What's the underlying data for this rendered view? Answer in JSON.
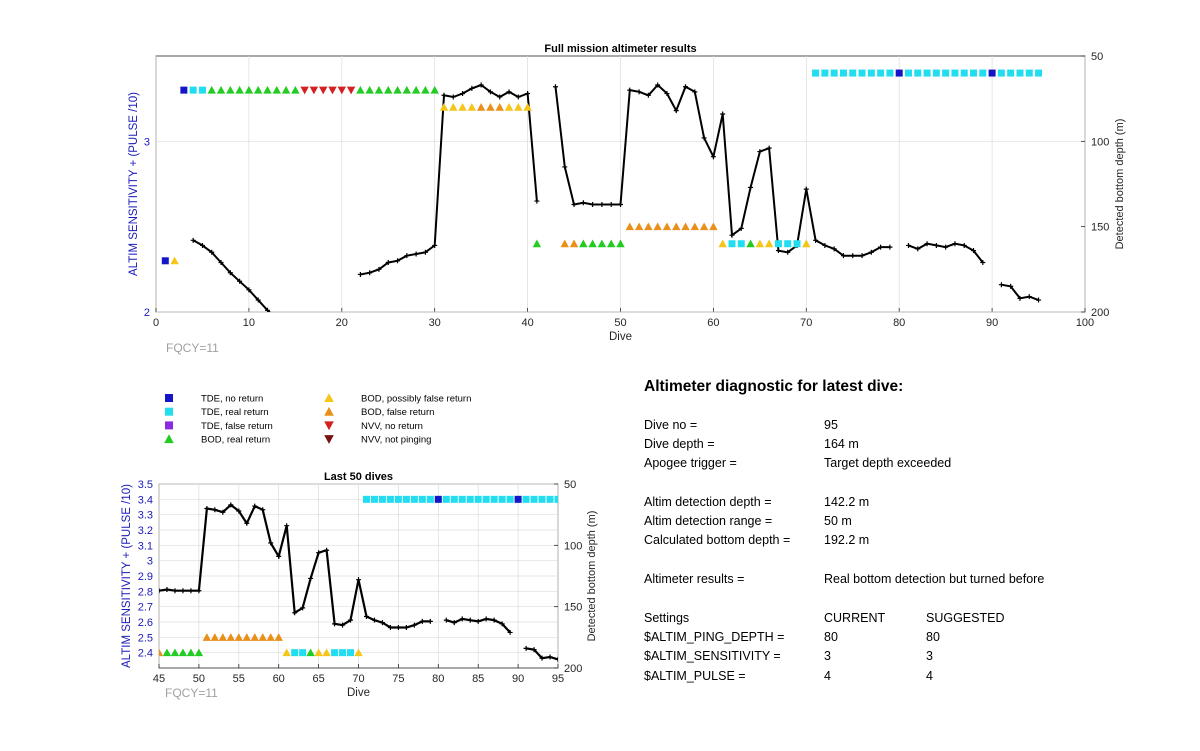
{
  "chart_data": [
    {
      "type": "line",
      "title": "Full mission altimeter results",
      "xlabel": "Dive",
      "ylabel_left": "ALTIM SENSITIVITY + (PULSE /10)",
      "ylabel_right": "Detected bottom depth (m)",
      "xlim": [
        0,
        100
      ],
      "ylim_left": [
        2,
        3.5
      ],
      "ylim_right": [
        200,
        50
      ],
      "right_axis_reversed": true,
      "grid": true,
      "x_ticks": [
        "0",
        "10",
        "20",
        "30",
        "40",
        "50",
        "60",
        "70",
        "80",
        "90",
        "100"
      ],
      "y_left_ticks": [
        "2",
        "3"
      ],
      "y_right_ticks": [
        "50",
        "100",
        "150",
        "200"
      ],
      "annotation": "FQCY=11",
      "depth_series": {
        "color": "#000000",
        "points": [
          [
            2,
            42
          ],
          [
            4,
            158
          ],
          [
            5,
            161
          ],
          [
            6,
            165
          ],
          [
            7,
            171
          ],
          [
            8,
            177
          ],
          [
            9,
            182
          ],
          [
            10,
            187
          ],
          [
            11,
            193
          ],
          [
            12,
            199
          ],
          [
            13,
            204
          ],
          [
            14,
            207
          ],
          [
            15,
            211
          ],
          [
            22,
            178
          ],
          [
            23,
            177
          ],
          [
            24,
            175
          ],
          [
            25,
            171
          ],
          [
            26,
            170
          ],
          [
            27,
            167
          ],
          [
            28,
            166
          ],
          [
            29,
            165
          ],
          [
            30,
            161
          ],
          [
            31,
            73
          ],
          [
            32,
            74
          ],
          [
            33,
            72
          ],
          [
            34,
            69
          ],
          [
            35,
            67
          ],
          [
            36,
            71
          ],
          [
            37,
            74
          ],
          [
            38,
            71
          ],
          [
            39,
            74
          ],
          [
            40,
            72
          ],
          [
            41,
            135
          ],
          [
            43,
            68
          ],
          [
            44,
            115
          ],
          [
            45,
            137
          ],
          [
            46,
            136
          ],
          [
            47,
            137
          ],
          [
            48,
            137
          ],
          [
            49,
            137
          ],
          [
            50,
            137
          ],
          [
            51,
            70
          ],
          [
            52,
            71
          ],
          [
            53,
            73
          ],
          [
            54,
            67
          ],
          [
            55,
            72
          ],
          [
            56,
            82
          ],
          [
            57,
            68
          ],
          [
            58,
            71
          ],
          [
            59,
            98
          ],
          [
            60,
            109
          ],
          [
            61,
            84
          ],
          [
            62,
            155
          ],
          [
            63,
            151
          ],
          [
            64,
            127
          ],
          [
            65,
            106
          ],
          [
            66,
            104
          ],
          [
            67,
            164
          ],
          [
            68,
            165
          ],
          [
            69,
            161
          ],
          [
            70,
            128
          ],
          [
            71,
            158
          ],
          [
            72,
            161
          ],
          [
            73,
            163
          ],
          [
            74,
            167
          ],
          [
            75,
            167
          ],
          [
            76,
            167
          ],
          [
            77,
            165
          ],
          [
            78,
            162
          ],
          [
            79,
            162
          ],
          [
            81,
            161
          ],
          [
            82,
            163
          ],
          [
            83,
            160
          ],
          [
            84,
            161
          ],
          [
            85,
            162
          ],
          [
            86,
            160
          ],
          [
            87,
            161
          ],
          [
            88,
            164
          ],
          [
            89,
            171
          ],
          [
            91,
            184
          ],
          [
            92,
            185
          ],
          [
            93,
            192
          ],
          [
            94,
            191
          ],
          [
            95,
            193
          ]
        ]
      },
      "flags": [
        {
          "x": [
            3
          ],
          "y": 3.3,
          "series": "TDE, no return"
        },
        {
          "x": [
            4,
            5
          ],
          "y": 3.3,
          "series": "TDE, real return"
        },
        {
          "x": [
            6,
            7,
            8,
            9,
            10,
            11,
            12,
            13,
            14,
            15
          ],
          "y": 3.3,
          "series": "BOD, real return"
        },
        {
          "x": [
            16,
            17,
            18,
            19,
            20,
            21
          ],
          "y": 3.3,
          "series": "NVV, no return"
        },
        {
          "x": [
            22,
            23,
            24,
            25,
            26,
            27,
            28,
            29,
            30
          ],
          "y": 3.3,
          "series": "BOD, real return"
        },
        {
          "x": [
            31,
            32,
            33,
            34,
            38,
            39,
            40
          ],
          "y": 3.2,
          "series": "BOD, possibly false return"
        },
        {
          "x": [
            35,
            36,
            37
          ],
          "y": 3.2,
          "series": "BOD, false return"
        },
        {
          "x": [
            1
          ],
          "y": 2.3,
          "series": "TDE, no return"
        },
        {
          "x": [
            2
          ],
          "y": 2.3,
          "series": "BOD, possibly false return"
        },
        {
          "x": [
            41,
            46,
            47,
            48,
            49,
            50
          ],
          "y": 2.4,
          "series": "BOD, real return"
        },
        {
          "x": [
            44,
            45
          ],
          "y": 2.4,
          "series": "BOD, false return"
        },
        {
          "x": [
            51,
            52,
            53,
            54,
            55,
            56,
            57,
            58,
            59,
            60
          ],
          "y": 2.5,
          "series": "BOD, false return"
        },
        {
          "x": [
            61,
            65,
            66,
            70
          ],
          "y": 2.4,
          "series": "BOD, possibly false return"
        },
        {
          "x": [
            62,
            63,
            67,
            68,
            69
          ],
          "y": 2.4,
          "series": "TDE, real return"
        },
        {
          "x": [
            64
          ],
          "y": 2.4,
          "series": "BOD, real return"
        },
        {
          "x": [
            71,
            72,
            73,
            74,
            75,
            76,
            77,
            78,
            79,
            81,
            82,
            83,
            84,
            85,
            86,
            87,
            88,
            89,
            91,
            92,
            93,
            94,
            95
          ],
          "y": 3.4,
          "series": "TDE, real return"
        },
        {
          "x": [
            80,
            90
          ],
          "y": 3.4,
          "series": "TDE, no return"
        }
      ]
    },
    {
      "type": "line",
      "title": "Last 50 dives",
      "xlabel": "Dive",
      "ylabel_left": "ALTIM SENSITIVITY + (PULSE /10)",
      "ylabel_right": "Detected bottom depth (m)",
      "xlim": [
        45,
        95
      ],
      "ylim_left": [
        2.3,
        3.5
      ],
      "ylim_right": [
        200,
        50
      ],
      "right_axis_reversed": true,
      "grid": true,
      "x_ticks": [
        "45",
        "50",
        "55",
        "60",
        "65",
        "70",
        "75",
        "80",
        "85",
        "90",
        "95"
      ],
      "y_left_ticks": [
        "2.4",
        "2.5",
        "2.6",
        "2.7",
        "2.8",
        "2.9",
        "3",
        "3.1",
        "3.2",
        "3.3",
        "3.4",
        "3.5"
      ],
      "y_right_ticks": [
        "50",
        "100",
        "150",
        "200"
      ],
      "annotation": "FQCY=11"
    }
  ],
  "legend": {
    "col1": [
      {
        "label": "TDE, no return",
        "marker": "square",
        "color": "#1515c8"
      },
      {
        "label": "TDE, real return",
        "marker": "square",
        "color": "#22ddf0"
      },
      {
        "label": "TDE, false return",
        "marker": "square",
        "color": "#8a2be2"
      },
      {
        "label": "BOD, real return",
        "marker": "triangle-up",
        "color": "#22cc22"
      }
    ],
    "col2": [
      {
        "label": "BOD, possibly false return",
        "marker": "triangle-up",
        "color": "#f5c518"
      },
      {
        "label": "BOD, false return",
        "marker": "triangle-up",
        "color": "#e8901a"
      },
      {
        "label": "NVV, no return",
        "marker": "triangle-down",
        "color": "#d42020"
      },
      {
        "label": "NVV, not pinging",
        "marker": "triangle-down",
        "color": "#7a1010"
      }
    ]
  },
  "diagnostic": {
    "title": "Altimeter diagnostic for latest dive:",
    "rows": [
      {
        "label": "Dive no =",
        "value": "95"
      },
      {
        "label": "Dive depth =",
        "value": "164 m"
      },
      {
        "label": "Apogee trigger =",
        "value": "Target depth exceeded"
      },
      {
        "label": "Altim detection depth =",
        "value": "142.2 m"
      },
      {
        "label": "Altim detection range =",
        "value": "50 m"
      },
      {
        "label": "Calculated bottom depth =",
        "value": "192.2 m"
      },
      {
        "label": "Altimeter results =",
        "value": "Real bottom detection but turned before"
      }
    ],
    "settings": {
      "header": {
        "label": "Settings",
        "current": "CURRENT",
        "suggested": "SUGGESTED"
      },
      "rows": [
        {
          "label": "$ALTIM_PING_DEPTH =",
          "current": "80",
          "suggested": "80"
        },
        {
          "label": "$ALTIM_SENSITIVITY =",
          "current": "3",
          "suggested": "3"
        },
        {
          "label": "$ALTIM_PULSE =",
          "current": "4",
          "suggested": "4"
        }
      ]
    }
  }
}
